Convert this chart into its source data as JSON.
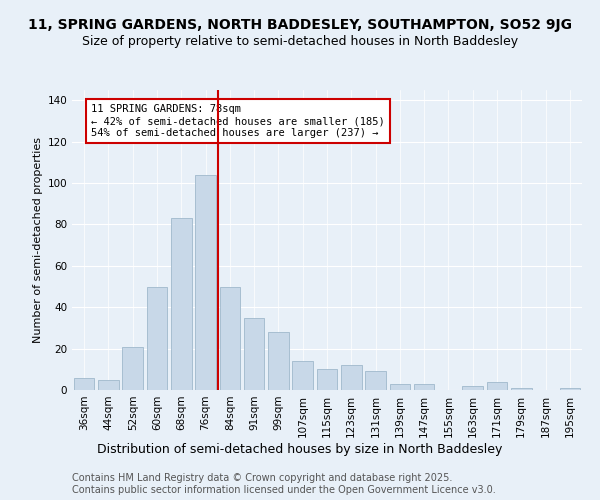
{
  "title1": "11, SPRING GARDENS, NORTH BADDESLEY, SOUTHAMPTON, SO52 9JG",
  "title2": "Size of property relative to semi-detached houses in North Baddesley",
  "xlabel": "Distribution of semi-detached houses by size in North Baddesley",
  "ylabel": "Number of semi-detached properties",
  "categories": [
    "36sqm",
    "44sqm",
    "52sqm",
    "60sqm",
    "68sqm",
    "76sqm",
    "84sqm",
    "91sqm",
    "99sqm",
    "107sqm",
    "115sqm",
    "123sqm",
    "131sqm",
    "139sqm",
    "147sqm",
    "155sqm",
    "163sqm",
    "171sqm",
    "179sqm",
    "187sqm",
    "195sqm"
  ],
  "values": [
    6,
    5,
    21,
    50,
    83,
    104,
    50,
    35,
    28,
    14,
    10,
    12,
    9,
    3,
    3,
    0,
    2,
    4,
    1,
    0,
    1
  ],
  "bar_color": "#c8d8e8",
  "bar_edge_color": "#a0b8cc",
  "ref_line_x": 5.5,
  "ref_line_color": "#cc0000",
  "annotation_text": "11 SPRING GARDENS: 78sqm\n← 42% of semi-detached houses are smaller (185)\n54% of semi-detached houses are larger (237) →",
  "annotation_box_color": "#ffffff",
  "annotation_box_edge": "#cc0000",
  "ylim": [
    0,
    145
  ],
  "yticks": [
    0,
    20,
    40,
    60,
    80,
    100,
    120,
    140
  ],
  "bg_color": "#e8f0f8",
  "plot_bg_color": "#e8f0f8",
  "footer": "Contains HM Land Registry data © Crown copyright and database right 2025.\nContains public sector information licensed under the Open Government Licence v3.0.",
  "title1_fontsize": 10,
  "title2_fontsize": 9,
  "xlabel_fontsize": 9,
  "ylabel_fontsize": 8,
  "tick_fontsize": 7.5,
  "footer_fontsize": 7,
  "ann_fontsize": 7.5
}
